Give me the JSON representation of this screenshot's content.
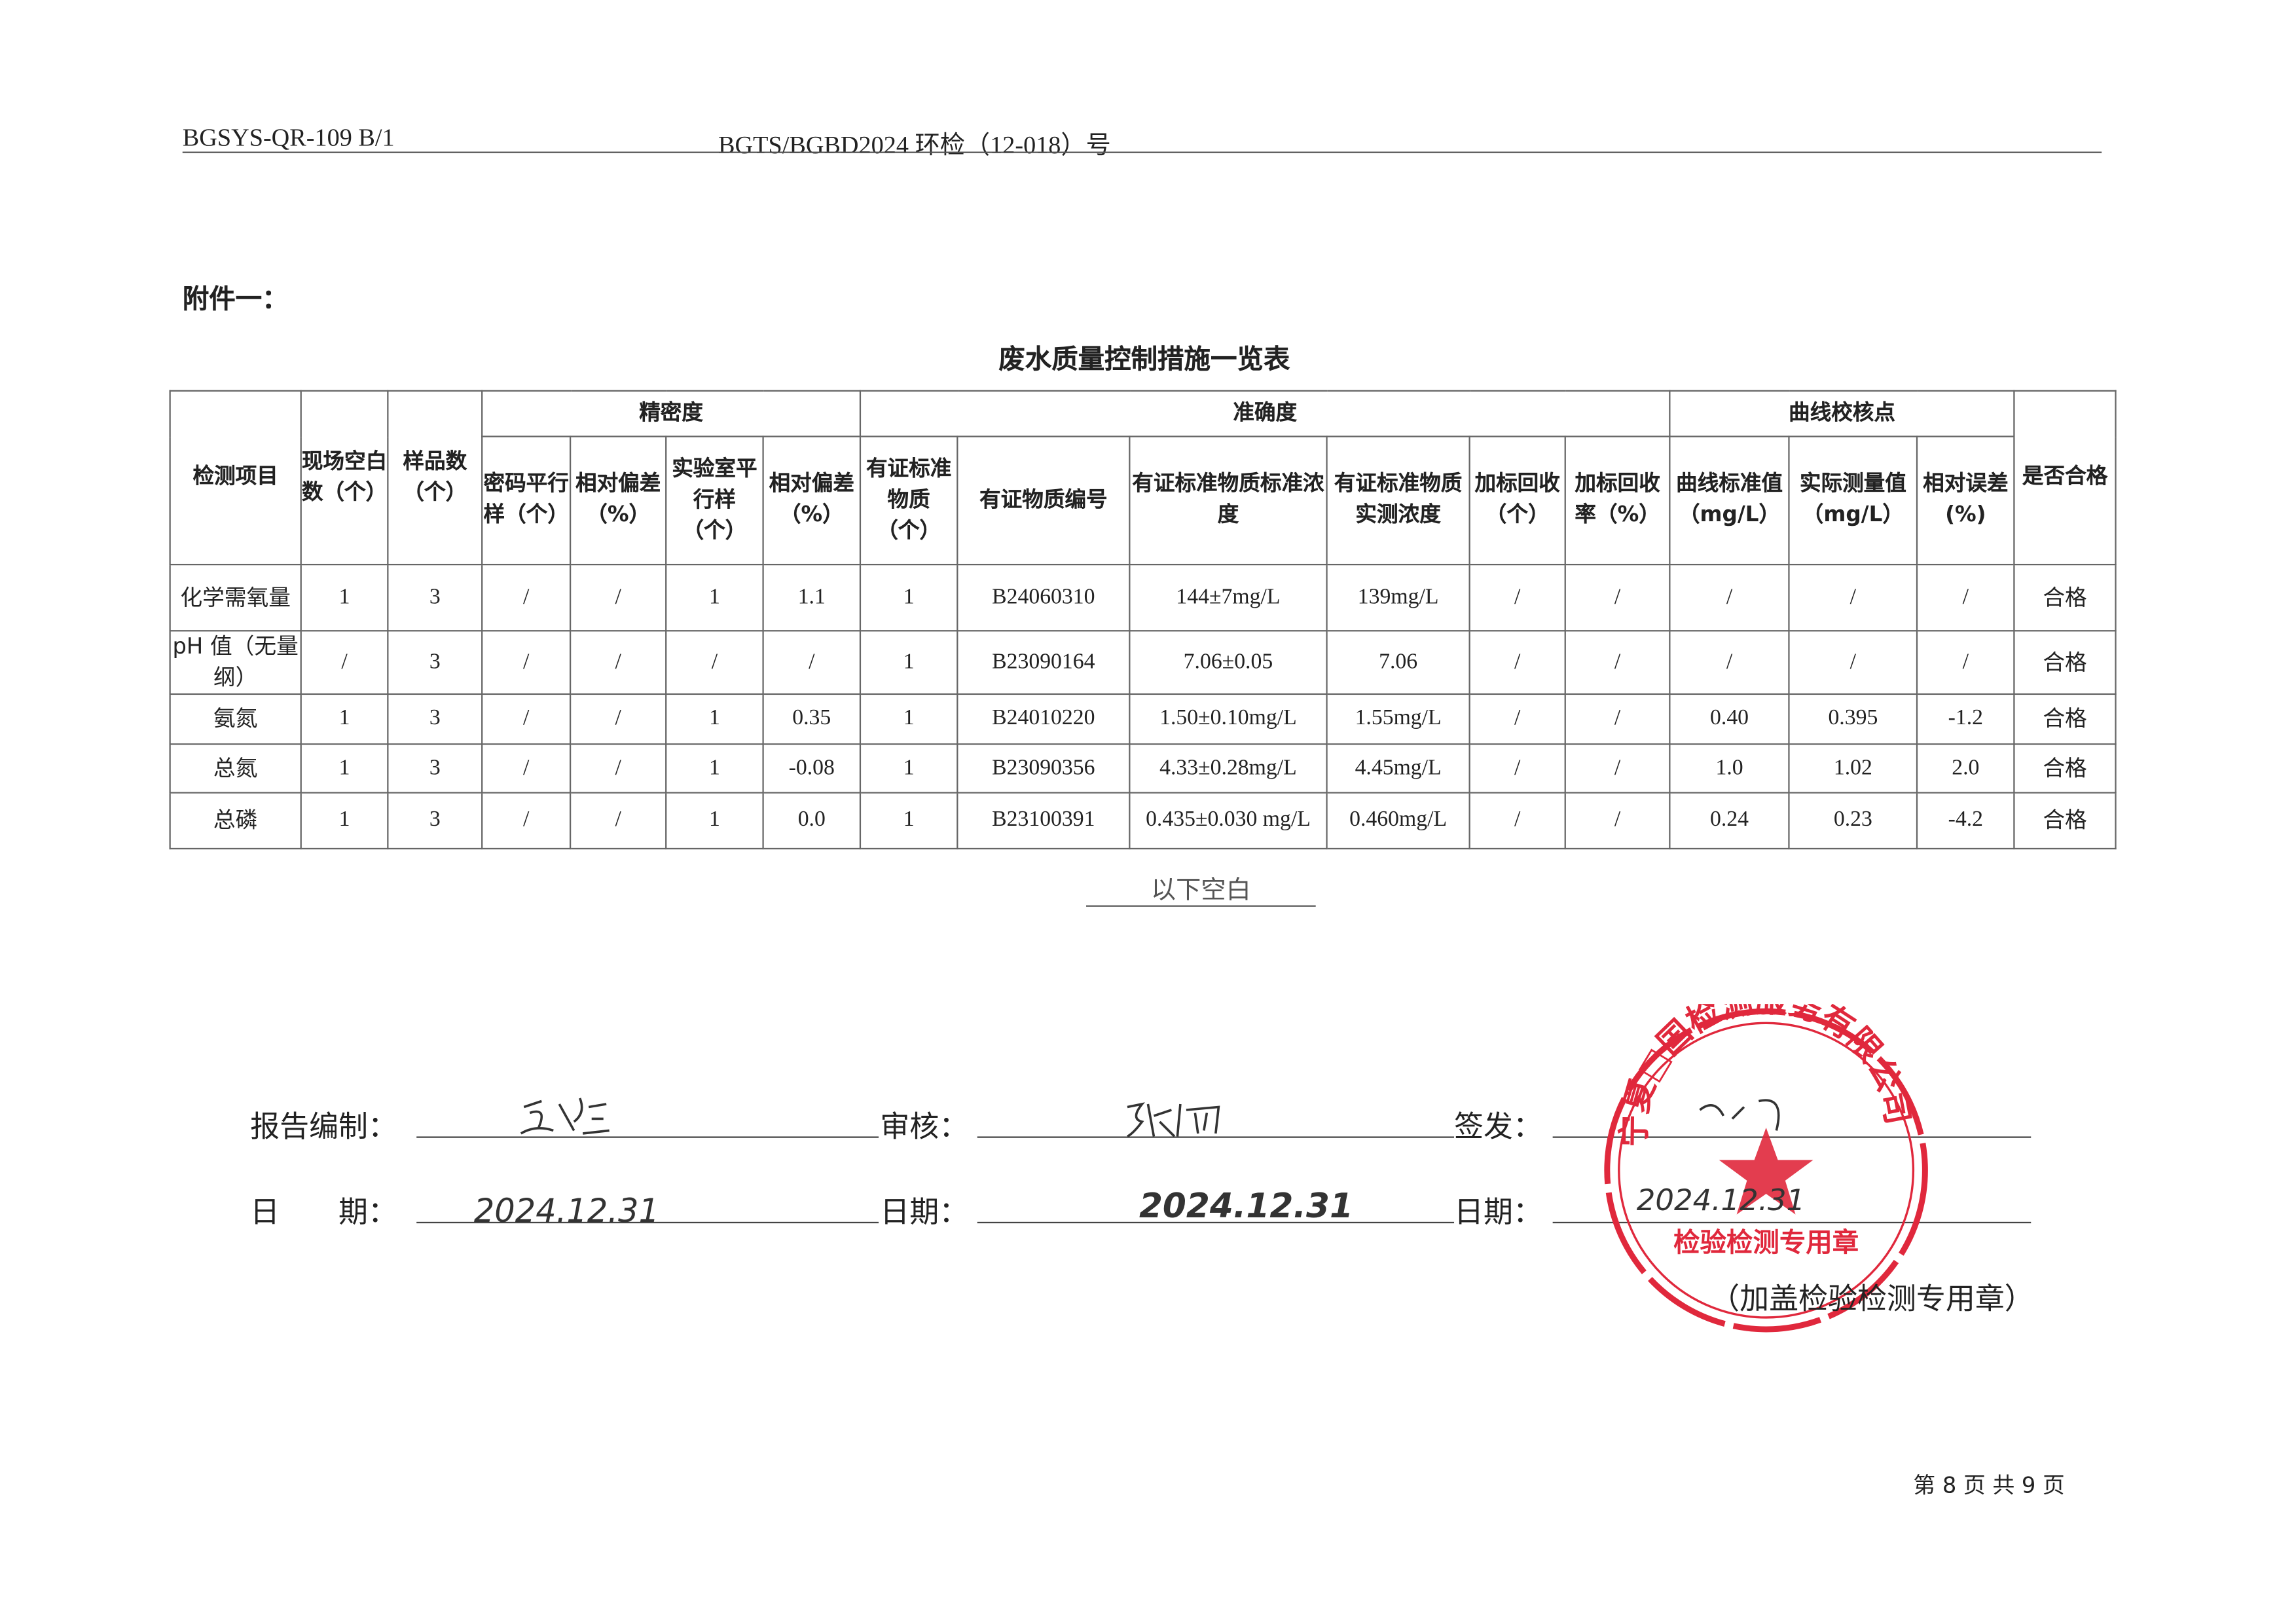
{
  "header": {
    "form_code": "BGSYS-QR-109 B/1",
    "report_no": "BGTS/BGBD2024 环检（12-018）号"
  },
  "attachment_label": "附件一：",
  "table_title": "废水质量控制措施一览表",
  "table": {
    "group_headers": {
      "precision": "精密度",
      "accuracy": "准确度",
      "curve": "曲线校核点"
    },
    "columns": [
      "检测项目",
      "现场空白数（个）",
      "样品数（个）",
      "密码平行样（个）",
      "相对偏差（%）",
      "实验室平行样（个）",
      "相对偏差（%）",
      "有证标准物质（个）",
      "有证物质编号",
      "有证标准物质标准浓度",
      "有证标准物质实测浓度",
      "加标回收（个）",
      "加标回收率（%）",
      "曲线标准值（mg/L）",
      "实际测量值（mg/L）",
      "相对误差(%)",
      "是否合格"
    ],
    "rows": [
      [
        "化学需氧量",
        "1",
        "3",
        "/",
        "/",
        "1",
        "1.1",
        "1",
        "B24060310",
        "144±7mg/L",
        "139mg/L",
        "/",
        "/",
        "/",
        "/",
        "/",
        "合格"
      ],
      [
        "pH 值（无量纲）",
        "/",
        "3",
        "/",
        "/",
        "/",
        "/",
        "1",
        "B23090164",
        "7.06±0.05",
        "7.06",
        "/",
        "/",
        "/",
        "/",
        "/",
        "合格"
      ],
      [
        "氨氮",
        "1",
        "3",
        "/",
        "/",
        "1",
        "0.35",
        "1",
        "B24010220",
        "1.50±0.10mg/L",
        "1.55mg/L",
        "/",
        "/",
        "0.40",
        "0.395",
        "-1.2",
        "合格"
      ],
      [
        "总氮",
        "1",
        "3",
        "/",
        "/",
        "1",
        "-0.08",
        "1",
        "B23090356",
        "4.33±0.28mg/L",
        "4.45mg/L",
        "/",
        "/",
        "1.0",
        "1.02",
        "2.0",
        "合格"
      ],
      [
        "总磷",
        "1",
        "3",
        "/",
        "/",
        "1",
        "0.0",
        "1",
        "B23100391",
        "0.435±0.030 mg/L",
        "0.460mg/L",
        "/",
        "/",
        "0.24",
        "0.23",
        "-4.2",
        "合格"
      ]
    ]
  },
  "blank_below": "以下空白",
  "signatures": {
    "compiled_label": "报告编制：",
    "review_label": "审核：",
    "issue_label": "签发：",
    "date_label_1": "日　　期：",
    "date_label_2": "日期：",
    "date_label_3": "日期：",
    "compiled_date": "2024.12.31",
    "review_date": "2024.12.31",
    "issue_date": "2024.12.31"
  },
  "stamp": {
    "color": "#e0283c",
    "outer_text": "宁夏□国检测服务有限公司",
    "inner_text": "检验检测专用章"
  },
  "stamp_note": "（加盖检验检测专用章）",
  "page_footer": "第 8 页 共 9 页"
}
